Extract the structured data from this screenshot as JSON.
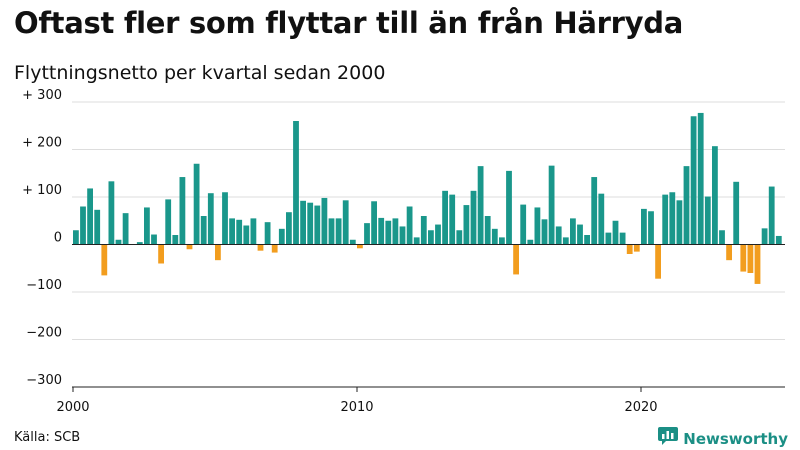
{
  "title": "Oftast fler som flyttar till än från Härryda",
  "subtitle": "Flyttningsnetto per kvartal sedan 2000",
  "source": "Källa: SCB",
  "brand": {
    "name": "Newsworthy",
    "icon": "newsworthy-logo-icon"
  },
  "colors": {
    "positive": "#1a978b",
    "negative": "#f29d1e",
    "grid": "#dddddd",
    "axis": "#222222"
  },
  "chart_data": {
    "type": "bar",
    "title": "Oftast fler som flyttar till än från Härryda",
    "subtitle": "Flyttningsnetto per kvartal sedan 2000",
    "ylabel": "",
    "xlabel": "",
    "ylim": [
      -300,
      300
    ],
    "grid": true,
    "y_ticks": [
      {
        "value": 300,
        "label": "+ 300"
      },
      {
        "value": 200,
        "label": "+ 200"
      },
      {
        "value": 100,
        "label": "+ 100"
      },
      {
        "value": 0,
        "label": "0"
      },
      {
        "value": -100,
        "label": "−100"
      },
      {
        "value": -200,
        "label": "−200"
      },
      {
        "value": -300,
        "label": "−300"
      }
    ],
    "x_ticks": [
      {
        "year": 2000,
        "label": "2000"
      },
      {
        "year": 2010,
        "label": "2010"
      },
      {
        "year": 2020,
        "label": "2020"
      }
    ],
    "start_year": 2000,
    "start_quarter": 1,
    "values": [
      30,
      80,
      118,
      73,
      -65,
      133,
      10,
      66,
      0,
      5,
      78,
      21,
      -40,
      95,
      20,
      142,
      -10,
      170,
      60,
      108,
      -33,
      110,
      55,
      52,
      40,
      55,
      -13,
      47,
      -17,
      33,
      68,
      260,
      92,
      88,
      82,
      98,
      55,
      55,
      93,
      10,
      -8,
      45,
      91,
      56,
      50,
      55,
      38,
      80,
      15,
      60,
      30,
      42,
      113,
      105,
      30,
      83,
      113,
      165,
      60,
      33,
      15,
      155,
      -63,
      84,
      10,
      78,
      53,
      166,
      38,
      15,
      55,
      42,
      20,
      142,
      107,
      25,
      50,
      25,
      -20,
      -15,
      75,
      70,
      -72,
      105,
      110,
      93,
      165,
      270,
      277,
      101,
      207,
      30,
      -33,
      132,
      -57,
      -60,
      -83,
      34,
      122,
      18
    ]
  }
}
